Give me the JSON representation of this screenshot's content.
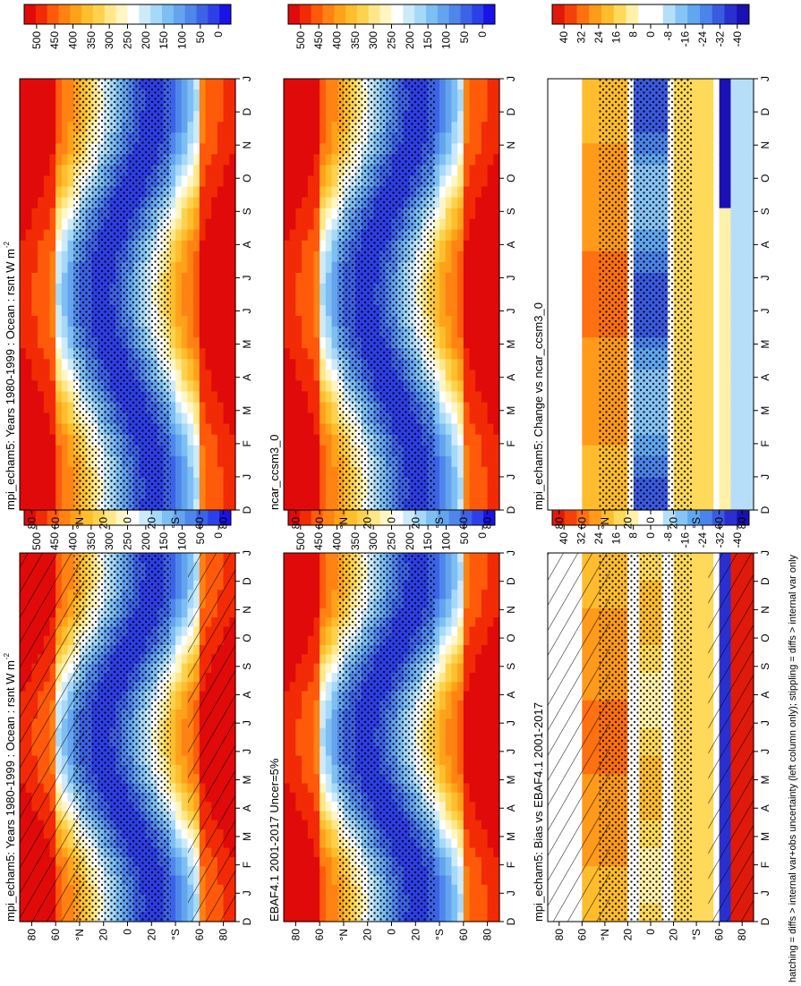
{
  "figure": {
    "footnote": "hatching = diffs > internal var+obs uncertainty (left column only); stippling = diffs > internal var only"
  },
  "colors": {
    "abs_colorbar": [
      "#1a12e6",
      "#2d3fe8",
      "#3c62e6",
      "#4f86ea",
      "#64a4ef",
      "#7dbff2",
      "#a6d8f7",
      "#cdeaf9",
      "#ffffff",
      "#fff6c4",
      "#ffe78a",
      "#ffd24d",
      "#ffbe2e",
      "#ffa21a",
      "#ff8212",
      "#ff5a0a",
      "#f22a05",
      "#e00a0a"
    ],
    "diff_colorbar": [
      "#1a10b4",
      "#2a2fd0",
      "#3a5ae0",
      "#4b84ea",
      "#5fa7f0",
      "#86c4f5",
      "#b7def9",
      "#ffffff",
      "#ffffff",
      "#fff1a8",
      "#ffd95a",
      "#ffbd2e",
      "#ff9a1a",
      "#ff7010",
      "#f5400a",
      "#e01a0a"
    ],
    "stipple": "#000000",
    "hatch": "#000000"
  },
  "chart_data": [
    {
      "type": "heatmap",
      "panel": "left-top",
      "title": "mpi_echam5: Years 1980-1999 : Ocean : rsnt W m",
      "title_superscript": "-2",
      "x_ticklabels": [
        "D",
        "J",
        "F",
        "M",
        "A",
        "M",
        "J",
        "J",
        "A",
        "S",
        "O",
        "N",
        "D",
        "J"
      ],
      "y_ticklabels": [
        "80",
        "60",
        "°N",
        "20",
        "0",
        "20",
        "°S",
        "60",
        "80"
      ],
      "y_values": [
        90,
        60,
        30,
        0,
        -30,
        -60,
        -90
      ],
      "colorbar_ticks": [
        "500",
        "450",
        "400",
        "350",
        "300",
        "250",
        "200",
        "150",
        "100",
        "50",
        "0"
      ],
      "colorbar_range": [
        0,
        520
      ],
      "overlay": "hatching and stippling",
      "grid": false
    },
    {
      "type": "heatmap",
      "panel": "right-top",
      "title": "mpi_echam5: Years 1980-1999 : Ocean : rsnt W m",
      "title_superscript": "-2",
      "x_ticklabels": [
        "D",
        "J",
        "F",
        "M",
        "A",
        "M",
        "J",
        "J",
        "A",
        "S",
        "O",
        "N",
        "D",
        "J"
      ],
      "y_ticklabels": [
        "80",
        "60",
        "°N",
        "20",
        "0",
        "20",
        "°S",
        "60",
        "80"
      ],
      "colorbar_ticks": [
        "500",
        "450",
        "400",
        "350",
        "300",
        "250",
        "200",
        "150",
        "100",
        "50",
        "0"
      ],
      "colorbar_range": [
        0,
        520
      ],
      "overlay": "stippling",
      "grid": false
    },
    {
      "type": "heatmap",
      "panel": "left-middle",
      "title": "EBAF4.1 2001-2017 Uncer=5%",
      "x_ticklabels": [
        "D",
        "J",
        "F",
        "M",
        "A",
        "M",
        "J",
        "J",
        "A",
        "S",
        "O",
        "N",
        "D",
        "J"
      ],
      "y_ticklabels": [
        "80",
        "60",
        "°N",
        "20",
        "0",
        "20",
        "°S",
        "60",
        "80"
      ],
      "colorbar_ticks": [
        "500",
        "450",
        "400",
        "350",
        "300",
        "250",
        "200",
        "150",
        "100",
        "50",
        "0"
      ],
      "colorbar_range": [
        0,
        520
      ],
      "overlay": "stippling",
      "grid": false
    },
    {
      "type": "heatmap",
      "panel": "right-middle",
      "title": "ncar_ccsm3_0",
      "x_ticklabels": [
        "D",
        "J",
        "F",
        "M",
        "A",
        "M",
        "J",
        "J",
        "A",
        "S",
        "O",
        "N",
        "D",
        "J"
      ],
      "y_ticklabels": [
        "80",
        "60",
        "°N",
        "20",
        "0",
        "20",
        "°S",
        "60",
        "80"
      ],
      "colorbar_ticks": [
        "500",
        "450",
        "400",
        "350",
        "300",
        "250",
        "200",
        "150",
        "100",
        "50",
        "0"
      ],
      "colorbar_range": [
        0,
        520
      ],
      "overlay": "stippling",
      "grid": false
    },
    {
      "type": "heatmap",
      "panel": "left-bottom",
      "title": "mpi_echam5: Bias vs EBAF4.1 2001-2017",
      "x_ticklabels": [
        "D",
        "J",
        "F",
        "M",
        "A",
        "M",
        "J",
        "J",
        "A",
        "S",
        "O",
        "N",
        "D",
        "J"
      ],
      "y_ticklabels": [
        "80",
        "60",
        "°N",
        "20",
        "0",
        "20",
        "°S",
        "60",
        "80"
      ],
      "colorbar_ticks": [
        "40",
        "32",
        "24",
        "16",
        "8",
        "0",
        "-8",
        "-16",
        "-24",
        "-32",
        "-40"
      ],
      "colorbar_range": [
        -44,
        44
      ],
      "overlay": "hatching and stippling",
      "grid": false
    },
    {
      "type": "heatmap",
      "panel": "right-bottom",
      "title": "mpi_echam5: Change vs ncar_ccsm3_0",
      "x_ticklabels": [
        "D",
        "J",
        "F",
        "M",
        "A",
        "M",
        "J",
        "J",
        "A",
        "S",
        "O",
        "N",
        "D",
        "J"
      ],
      "y_ticklabels": [
        "80",
        "60",
        "°N",
        "20",
        "0",
        "20",
        "°S",
        "60",
        "80"
      ],
      "colorbar_ticks": [
        "40",
        "32",
        "24",
        "16",
        "8",
        "0",
        "-8",
        "-16",
        "-24",
        "-32",
        "-40"
      ],
      "colorbar_range": [
        -44,
        44
      ],
      "overlay": "stippling",
      "grid": false
    }
  ]
}
